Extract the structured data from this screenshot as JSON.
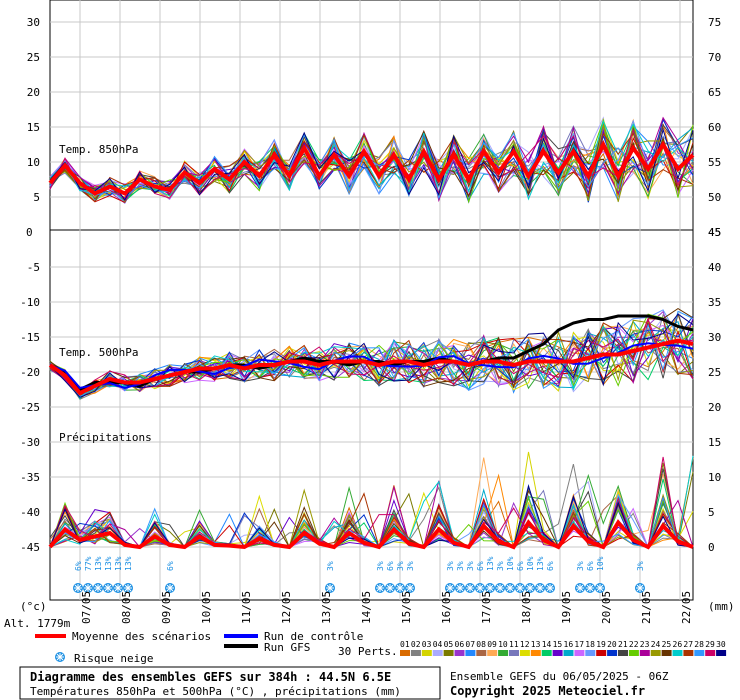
{
  "chart_data": {
    "type": "line",
    "panels": [
      {
        "label": "Temp. 850hPa",
        "left_ticks": [
          "30",
          "25",
          "20",
          "15",
          "10",
          "5",
          "0"
        ],
        "right_ticks": [
          "75",
          "70",
          "65",
          "60",
          "55",
          "50",
          "45"
        ],
        "y_range": [
          0,
          30
        ]
      },
      {
        "label": "Temp. 500hPa",
        "left_ticks": [
          "0",
          "-5",
          "-10",
          "-15",
          "-20",
          "-25",
          "-30",
          "-35",
          "-40",
          "-45"
        ],
        "right_ticks": [
          "45",
          "40",
          "35",
          "30",
          "25",
          "20",
          "15",
          "10",
          "5",
          "0"
        ],
        "y_range": [
          -45,
          0
        ]
      },
      {
        "label": "Précipitations",
        "y_range": [
          0,
          15
        ]
      }
    ],
    "x_dates": [
      "07/05",
      "08/05",
      "09/05",
      "10/05",
      "11/05",
      "12/05",
      "13/05",
      "14/05",
      "15/05",
      "16/05",
      "17/05",
      "18/05",
      "19/05",
      "20/05",
      "21/05",
      "22/05"
    ],
    "x_unit_left": "(°c)",
    "x_unit_right": "(mm)",
    "altitude": "Alt. 1779m",
    "series": {
      "t850_mean": [
        7,
        9.5,
        7,
        5.5,
        6.5,
        5.5,
        7.5,
        6.5,
        6,
        8.5,
        7,
        9,
        7.5,
        10,
        8,
        11,
        8,
        12,
        8,
        11,
        8,
        11.5,
        8,
        11,
        7.5,
        11.5,
        7.5,
        11,
        7.5,
        11.5,
        8.5,
        11.5,
        8,
        11.5,
        8.5,
        11.5,
        8,
        12.5,
        8,
        12,
        9,
        12.5,
        9,
        11
      ],
      "t500_mean": [
        -19,
        -20.5,
        -23,
        -22,
        -21,
        -21.5,
        -21.5,
        -21,
        -20.5,
        -20,
        -19.5,
        -19.5,
        -19,
        -19.5,
        -19,
        -19,
        -18.5,
        -18.5,
        -19,
        -18.5,
        -18.5,
        -18.5,
        -19,
        -18.5,
        -18.5,
        -19,
        -18.5,
        -18.5,
        -19,
        -18.5,
        -18.5,
        -19,
        -18.5,
        -18.5,
        -18.5,
        -18.5,
        -18,
        -17.5,
        -17.5,
        -17,
        -16.5,
        -16,
        -15.5,
        -16
      ],
      "t500_gfs": [
        -19,
        -20,
        -22.5,
        -21.5,
        -21.5,
        -21.5,
        -22,
        -21,
        -20.5,
        -20,
        -20,
        -19.5,
        -19,
        -19,
        -19.5,
        -19,
        -18.5,
        -18,
        -18.5,
        -18.5,
        -19,
        -18.5,
        -18.5,
        -19,
        -18.5,
        -18.5,
        -18,
        -18.5,
        -19,
        -18.5,
        -18,
        -18,
        -17,
        -16,
        -14,
        -13,
        -12.5,
        -12.5,
        -12,
        -12,
        -12,
        -12.5,
        -13.5,
        -14
      ],
      "precip_mean": [
        0,
        2.5,
        1,
        1.5,
        2,
        0.3,
        0,
        1.5,
        0.3,
        0,
        1.5,
        0.3,
        0.2,
        0,
        1.2,
        0.3,
        0,
        2,
        0.5,
        0,
        2,
        0.6,
        0,
        2.5,
        0.5,
        0,
        2.5,
        0.6,
        0,
        3,
        0.8,
        0,
        3.5,
        1,
        0,
        3,
        0.8,
        0,
        3.5,
        1,
        0,
        3,
        0.8,
        0
      ]
    },
    "snow_risk": [
      "6%",
      "77%",
      "13%",
      "13%",
      "13%",
      "13%",
      "6%",
      "3%",
      "3%",
      "6%",
      "3%",
      "3%",
      "3%",
      "3%",
      "3%",
      "6%",
      "13%",
      "3%",
      "10%",
      "6%",
      "10%",
      "13%",
      "6%",
      "3%",
      "6%",
      "10%",
      "3%"
    ]
  },
  "legend": {
    "mean_label": "Moyenne des scénarios",
    "control_label": "Run de contrôle",
    "gfs_label": "Run GFS",
    "snow_label": "Risque neige",
    "perts_label": "30 Perts.",
    "pert_codes": [
      "01",
      "02",
      "03",
      "04",
      "05",
      "06",
      "07",
      "08",
      "09",
      "10",
      "11",
      "12",
      "13",
      "14",
      "15",
      "16",
      "17",
      "18",
      "19",
      "20",
      "21",
      "22",
      "23",
      "24",
      "25",
      "26",
      "27",
      "28",
      "29",
      "30"
    ],
    "pert_colors": [
      "#d96b00",
      "#808080",
      "#d4d400",
      "#aaaaff",
      "#7a7a00",
      "#9933cc",
      "#2288ff",
      "#aa6644",
      "#ffaa55",
      "#33aa33",
      "#7777bb",
      "#dddd00",
      "#ff8800",
      "#00cc66",
      "#6600cc",
      "#00aacc",
      "#cc66ff",
      "#6699ff",
      "#cc0000",
      "#0033cc",
      "#444444",
      "#66cc00",
      "#aa0099",
      "#999900",
      "#663300",
      "#00cccc",
      "#aa3300",
      "#3399ff",
      "#cc0066",
      "#000088"
    ],
    "mean_color": "#ff0000",
    "control_color": "#0000ff",
    "gfs_color": "#000000"
  },
  "footer": {
    "title_line": "Diagramme des ensembles GEFS sur 384h : 44.5N 6.5E",
    "subtitle_line": "Températures 850hPa et 500hPa (°C) , précipitations (mm)",
    "ensemble_line": "Ensemble GEFS du 06/05/2025 - 06Z",
    "copyright_line": "Copyright 2025 Meteociel.fr"
  }
}
